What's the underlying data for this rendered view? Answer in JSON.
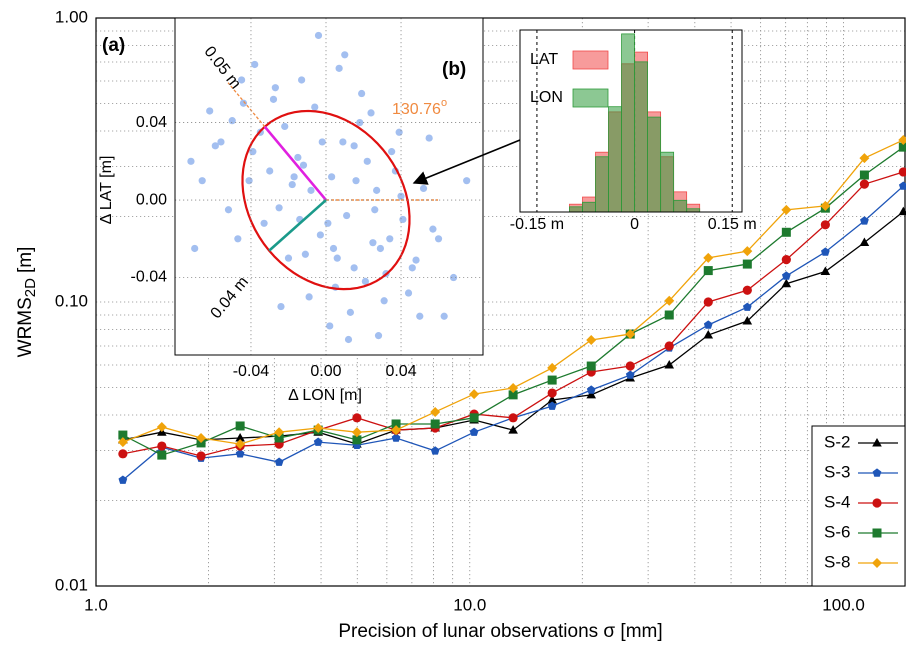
{
  "chart_data": [
    {
      "type": "line",
      "annotation": "(a)",
      "xlabel": "Precision of lunar observations σ [mm]",
      "ylabel_parts": [
        "WRMS",
        "2D",
        "[m]"
      ],
      "x": [
        1.18,
        1.5,
        1.91,
        2.43,
        3.09,
        3.93,
        4.99,
        6.35,
        8.08,
        10.27,
        13.06,
        16.61,
        21.13,
        26.87,
        34.17,
        43.45,
        55.27,
        70.29,
        89.39,
        113.7,
        144.5
      ],
      "series": [
        {
          "name": "S-2",
          "color": "#000000",
          "marker": "triangle",
          "values": [
            0.0327,
            0.0348,
            0.0327,
            0.0332,
            0.0337,
            0.0348,
            0.0316,
            0.0354,
            0.036,
            0.0384,
            0.0354,
            0.0452,
            0.0471,
            0.054,
            0.06,
            0.0765,
            0.0857,
            0.116,
            0.128,
            0.162,
            0.208
          ]
        },
        {
          "name": "S-3",
          "color": "#1f56b8",
          "marker": "pentagon",
          "values": [
            0.0236,
            0.0308,
            0.0282,
            0.0292,
            0.0273,
            0.0321,
            0.0313,
            0.0332,
            0.0299,
            0.0348,
            0.0391,
            0.043,
            0.049,
            0.0553,
            0.0689,
            0.083,
            0.0959,
            0.1235,
            0.15,
            0.193,
            0.256
          ]
        },
        {
          "name": "S-4",
          "color": "#cc1111",
          "marker": "circle",
          "values": [
            0.0292,
            0.0311,
            0.0287,
            0.0311,
            0.0316,
            0.0354,
            0.0391,
            0.0354,
            0.036,
            0.0403,
            0.0391,
            0.0478,
            0.0567,
            0.0595,
            0.07,
            0.1,
            0.11,
            0.141,
            0.187,
            0.26,
            0.287
          ]
        },
        {
          "name": "S-6",
          "color": "#1d7a2e",
          "marker": "square",
          "values": [
            0.034,
            0.0289,
            0.0319,
            0.0366,
            0.0332,
            0.0354,
            0.0327,
            0.0372,
            0.0372,
            0.0391,
            0.0471,
            0.0531,
            0.0595,
            0.0771,
            0.09,
            0.129,
            0.136,
            0.176,
            0.214,
            0.28,
            0.351
          ]
        },
        {
          "name": "S-8",
          "color": "#f0a30a",
          "marker": "diamond",
          "values": [
            0.0321,
            0.0363,
            0.0332,
            0.0316,
            0.0348,
            0.036,
            0.0348,
            0.0354,
            0.041,
            0.0474,
            0.0498,
            0.0586,
            0.0735,
            0.0771,
            0.101,
            0.143,
            0.151,
            0.211,
            0.218,
            0.321,
            0.372
          ]
        }
      ],
      "xlim": [
        1,
        146
      ],
      "ylim": [
        0.01,
        1
      ],
      "log_x": true,
      "log_y": true,
      "grid": true,
      "legend": "lower right",
      "xticks": [
        {
          "value": 1,
          "label": "1.0"
        },
        {
          "value": 10,
          "label": "10.0"
        },
        {
          "value": 100,
          "label": "100.0"
        }
      ],
      "yticks": [
        {
          "value": 0.01,
          "label": "0.01"
        },
        {
          "value": 0.1,
          "label": "0.10"
        },
        {
          "value": 1,
          "label": "1.00"
        }
      ]
    },
    {
      "type": "scatter",
      "xlabel": "Δ LON [m]",
      "ylabel": "Δ LAT [m]",
      "color": "#a3bff0",
      "x": [
        -0.012,
        0.025,
        -0.035,
        0.041,
        0.003,
        -0.02,
        0.015,
        -0.05,
        0.032,
        -0.008,
        0.06,
        -0.028,
        0.011,
        -0.041,
        0.022,
        0.005,
        -0.015,
        0.048,
        -0.062,
        0.037,
        -0.003,
        0.018,
        -0.025,
        0.029,
        -0.045,
        0.009,
        0.052,
        -0.033,
        0.013,
        -0.006,
        0.068,
        -0.018,
        0.035,
        -0.056,
        0.002,
        0.026,
        -0.038,
        0.044,
        -0.011,
        0.019,
        -0.072,
        0.057,
        -0.022,
        0.007,
        0.031,
        -0.047,
        0.015,
        -0.002,
        0.063,
        -0.03,
        0.024,
        -0.014,
        0.04,
        -0.066,
        0.01,
        0.046,
        -0.027,
        0.021,
        -0.009,
        0.075,
        -0.052,
        0.034,
        -0.017,
        0.004,
        0.055,
        -0.039,
        0.016,
        -0.004,
        0.028,
        -0.059,
        0.012,
        0.039,
        -0.024,
        0.006,
        -0.07,
        0.05,
        -0.013,
        0.027,
        -0.044,
        0.001
      ],
      "y": [
        0.018,
        -0.022,
        0.035,
        -0.01,
        0.012,
        -0.03,
        0.028,
        0.041,
        -0.038,
        0.005,
        -0.02,
        0.052,
        -0.008,
        0.01,
        0.02,
        -0.045,
        0.022,
        -0.031,
        0.046,
        0.015,
        -0.018,
        0.04,
        -0.004,
        -0.025,
        0.062,
        0.03,
        0.006,
        -0.012,
        -0.058,
        0.048,
        -0.04,
        0.008,
        0.025,
        0.03,
        -0.065,
        -0.005,
        0.07,
        -0.048,
        -0.028,
        0.055,
        0.02,
        -0.015,
        0.038,
        0.068,
        -0.052,
        -0.02,
        -0.035,
        0.03,
        -0.06,
        0.015,
        0.045,
        -0.01,
        0.002,
        0.01,
        0.075,
        -0.035,
        0.058,
        -0.042,
        -0.05,
        0.01,
        -0.005,
        -0.02,
        0.012,
        -0.025,
        0.032,
        0.025,
        0.01,
        0.085,
        -0.07,
        0.028,
        -0.072,
        0.035,
        -0.055,
        -0.03,
        -0.025,
        -0.06,
        0.062,
        0.005,
        0.05,
        -0.012
      ],
      "xlim": [
        -0.0805,
        0.0837
      ],
      "ylim": [
        -0.08,
        0.094
      ],
      "grid": true,
      "xticks": [
        -0.04,
        {
          "value": 0,
          "label": "0.00"
        },
        0.04
      ],
      "yticks": [
        -0.04,
        {
          "value": 0,
          "label": "0.00"
        },
        0.04
      ],
      "ellipse": {
        "center": [
          0,
          0
        ],
        "color": "#e01010",
        "semi_major": {
          "value": 0.05,
          "label": "0.05 m"
        },
        "semi_major_color": "#e020e0",
        "semi_minor": {
          "value": 0.04,
          "label": "0.04 m"
        },
        "semi_minor_color": "#1a9a8a",
        "angle": 130.76,
        "angle_unit": "o",
        "angle_color": "#f08a40"
      }
    },
    {
      "type": "histogram",
      "annotation": "(b)",
      "bins": [
        -0.12,
        -0.1,
        -0.08,
        -0.06,
        -0.04,
        -0.02,
        0,
        0.02,
        0.04,
        0.06,
        0.08,
        0.1,
        0.12
      ],
      "series": [
        {
          "name": "LAT",
          "color": "#f04848",
          "values": [
            0,
            12,
            23,
            92,
            154,
            228,
            246,
            154,
            85,
            31,
            12,
            0
          ]
        },
        {
          "name": "LON",
          "color": "#2e9a3a",
          "values": [
            0,
            8,
            15,
            85,
            162,
            274,
            231,
            146,
            92,
            18,
            5,
            0
          ]
        }
      ],
      "xlim": [
        -0.176,
        0.165
      ],
      "ylim": [
        0,
        280
      ],
      "grid": true,
      "legend": "upper left",
      "xticks": [
        {
          "value": -0.15,
          "label": "-0.15 m"
        },
        0,
        {
          "value": 0.15,
          "label": "0.15 m"
        }
      ]
    }
  ]
}
